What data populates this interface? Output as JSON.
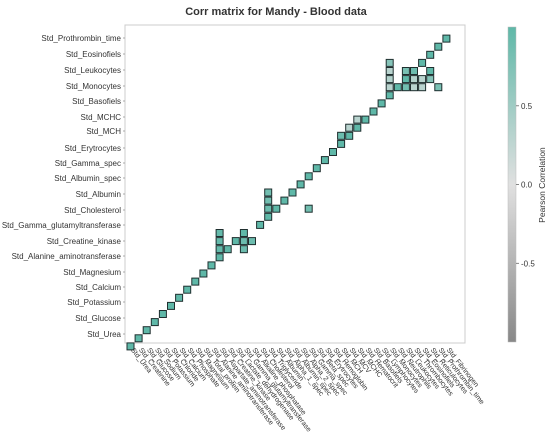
{
  "title": "Corr matrix for Mandy - Blood data",
  "chart_data": {
    "type": "heatmap",
    "title": "Corr matrix for Mandy - Blood data",
    "y_ticks": [
      "Std_Prothrombin_time",
      "Std_Eosinofiels",
      "Std_Leukocytes",
      "Std_Monocytes",
      "Std_Basofiels",
      "Std_MCHC",
      "Std_MCH",
      "Std_Erytrocytes",
      "Std_Gamma_spec",
      "Std_Albumin_spec",
      "Std_Albumin",
      "Std_Cholesterol",
      "Std_Gamma_glutamyltransferase",
      "Std_Creatine_kinase",
      "Std_Alanine_aminotransferase",
      "Std_Magnesium",
      "Std_Calcium",
      "Std_Potassium",
      "Std_Glucose",
      "Std_Urea"
    ],
    "x_ticks": [
      "Std_Urea",
      "Std_Creatinine",
      "Std_Glucose",
      "Std_Sodium",
      "Std_Potassium",
      "Std_Chloride",
      "Std_Calcium",
      "Std_Phosphate",
      "Std_Magnesium",
      "Std_Total_protein",
      "Std_Alanine_aminotransferase",
      "Std_Aspartate_aminotransferase",
      "Std_Creatine_kinase",
      "Std_Lactate_dehydrogenase",
      "Std_Gamma_glutamyltransferase",
      "Std_Alkaline_phosphatase",
      "Std_Cholesterol",
      "Std_Triglyceride",
      "Std_Albumin",
      "Std_Alpha_1_spec",
      "Std_Albumin_spec",
      "Std_Alpha_2_spec",
      "Std_Gamma_spec",
      "Std_Beta_spec",
      "Std_Erytrocytes",
      "Std_Hemoglobin",
      "Std_MCH",
      "Std_MCV",
      "Std_MCHC",
      "Std_Hematocrit",
      "Std_Basofiels",
      "Std_Lymphocytes",
      "Std_Monocytes",
      "Std_Neutrophils",
      "Std_Leukocytes",
      "Std_Thrombocytes",
      "Std_Eosinofiels",
      "Std_Reticulocytes",
      "Std_Prothrombin_time",
      "Std_Fibrinogen"
    ],
    "x_ticks_note": "x tick labels are rotated and partly unreadable in the original",
    "cells": [
      {
        "row": 39,
        "col": 0,
        "value": 1.0
      },
      {
        "row": 38,
        "col": 1,
        "value": 1.0
      },
      {
        "row": 37,
        "col": 2,
        "value": 1.0
      },
      {
        "row": 36,
        "col": 3,
        "value": 1.0
      },
      {
        "row": 35,
        "col": 4,
        "value": 1.0
      },
      {
        "row": 34,
        "col": 5,
        "value": 1.0
      },
      {
        "row": 33,
        "col": 6,
        "value": 1.0
      },
      {
        "row": 32,
        "col": 7,
        "value": 1.0
      },
      {
        "row": 31,
        "col": 8,
        "value": 1.0
      },
      {
        "row": 30,
        "col": 9,
        "value": 1.0
      },
      {
        "row": 29,
        "col": 10,
        "value": 1.0
      },
      {
        "row": 28,
        "col": 11,
        "value": 1.0
      },
      {
        "row": 27,
        "col": 11,
        "value": 0.95
      },
      {
        "row": 26,
        "col": 11,
        "value": 0.95
      },
      {
        "row": 25,
        "col": 11,
        "value": 0.95
      },
      {
        "row": 27,
        "col": 12,
        "value": 1.0
      },
      {
        "row": 26,
        "col": 13,
        "value": 1.0
      },
      {
        "row": 25,
        "col": 14,
        "value": 1.0
      },
      {
        "row": 26,
        "col": 14,
        "value": 0.9
      },
      {
        "row": 27,
        "col": 14,
        "value": 0.9
      },
      {
        "row": 26,
        "col": 15,
        "value": 0.9
      },
      {
        "row": 24,
        "col": 16,
        "value": 1.0
      },
      {
        "row": 23,
        "col": 17,
        "value": 1.0
      },
      {
        "row": 22,
        "col": 17,
        "value": 0.9
      },
      {
        "row": 21,
        "col": 17,
        "value": 0.85
      },
      {
        "row": 20,
        "col": 17,
        "value": 0.85
      },
      {
        "row": 22,
        "col": 18,
        "value": 1.0
      },
      {
        "row": 21,
        "col": 19,
        "value": 1.0
      },
      {
        "row": 20,
        "col": 20,
        "value": 1.0
      },
      {
        "row": 22,
        "col": 22,
        "value": 0.85
      },
      {
        "row": 19,
        "col": 21,
        "value": 1.0
      },
      {
        "row": 18,
        "col": 22,
        "value": 1.0
      },
      {
        "row": 17,
        "col": 23,
        "value": 1.0
      },
      {
        "row": 16,
        "col": 24,
        "value": 1.0
      },
      {
        "row": 15,
        "col": 25,
        "value": 1.0
      },
      {
        "row": 14,
        "col": 26,
        "value": 1.0
      },
      {
        "row": 13,
        "col": 26,
        "value": 0.9
      },
      {
        "row": 13,
        "col": 27,
        "value": 1.0
      },
      {
        "row": 12,
        "col": 28,
        "value": 1.0
      },
      {
        "row": 11,
        "col": 28,
        "value": 0.3
      },
      {
        "row": 12,
        "col": 27,
        "value": 0.3
      },
      {
        "row": 11,
        "col": 29,
        "value": 1.0
      },
      {
        "row": 10,
        "col": 30,
        "value": 1.0
      },
      {
        "row": 9,
        "col": 31,
        "value": 1.0
      },
      {
        "row": 8,
        "col": 32,
        "value": 1.0
      },
      {
        "row": 7,
        "col": 32,
        "value": 0.3
      },
      {
        "row": 6,
        "col": 32,
        "value": 0.35
      },
      {
        "row": 5,
        "col": 32,
        "value": 0.3
      },
      {
        "row": 4,
        "col": 32,
        "value": 0.7
      },
      {
        "row": 7,
        "col": 33,
        "value": 1.0
      },
      {
        "row": 6,
        "col": 34,
        "value": 1.0
      },
      {
        "row": 5,
        "col": 34,
        "value": 0.8
      },
      {
        "row": 7,
        "col": 34,
        "value": 0.85
      },
      {
        "row": 7,
        "col": 35,
        "value": 0.3
      },
      {
        "row": 7,
        "col": 36,
        "value": 0.3
      },
      {
        "row": 6,
        "col": 35,
        "value": 0.35
      },
      {
        "row": 5,
        "col": 35,
        "value": 0.9
      },
      {
        "row": 6,
        "col": 36,
        "value": 0.3
      },
      {
        "row": 6,
        "col": 37,
        "value": 0.7
      },
      {
        "row": 7,
        "col": 38,
        "value": 0.8
      },
      {
        "row": 5,
        "col": 37,
        "value": 1.0
      },
      {
        "row": 4,
        "col": 36,
        "value": 1.0
      },
      {
        "row": 3,
        "col": 37,
        "value": 1.0
      },
      {
        "row": 2,
        "col": 38,
        "value": 1.0
      },
      {
        "row": 1,
        "col": 39,
        "value": 1.0
      }
    ],
    "colorbar": {
      "title": "Pearson Correlation",
      "ticks": [
        0.5,
        0.0,
        -0.5
      ],
      "range": [
        -1,
        1
      ],
      "colors": {
        "high": "#5fb8a8",
        "mid": "#e0e0e0",
        "low": "#888888"
      }
    }
  }
}
